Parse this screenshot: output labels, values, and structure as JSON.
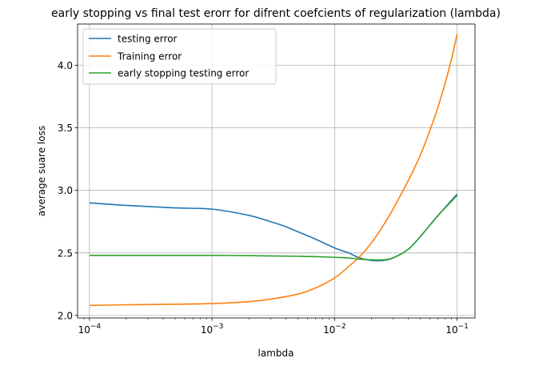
{
  "chart_data": {
    "type": "line",
    "title": "early stopping vs final test erorr for difrent coefcients of regularization (lambda)",
    "xlabel": "lambda",
    "ylabel": "average suare loss",
    "x_scale": "log",
    "xlim": [
      8e-05,
      0.14
    ],
    "ylim": [
      1.98,
      4.33
    ],
    "grid": true,
    "legend_position": "top-left",
    "x_ticks": [
      {
        "value": 0.0001,
        "base": "10",
        "exp": "−4"
      },
      {
        "value": 0.001,
        "base": "10",
        "exp": "−3"
      },
      {
        "value": 0.01,
        "base": "10",
        "exp": "−2"
      },
      {
        "value": 0.1,
        "base": "10",
        "exp": "−1"
      }
    ],
    "y_ticks": [
      {
        "value": 2.0,
        "label": "2.0"
      },
      {
        "value": 2.5,
        "label": "2.5"
      },
      {
        "value": 3.0,
        "label": "3.0"
      },
      {
        "value": 3.5,
        "label": "3.5"
      },
      {
        "value": 4.0,
        "label": "4.0"
      }
    ],
    "series": [
      {
        "name": "testing error",
        "color": "#1f77b4",
        "x": [
          0.0001,
          0.0002,
          0.0005,
          0.001,
          0.002,
          0.003,
          0.004,
          0.005,
          0.007,
          0.01,
          0.013,
          0.016,
          0.02,
          0.025,
          0.03,
          0.04,
          0.05,
          0.07,
          0.1
        ],
        "y": [
          2.9,
          2.88,
          2.86,
          2.85,
          2.8,
          2.75,
          2.71,
          2.67,
          2.61,
          2.54,
          2.5,
          2.46,
          2.44,
          2.44,
          2.46,
          2.53,
          2.63,
          2.8,
          2.97
        ]
      },
      {
        "name": "Training error",
        "color": "#ff7f0e",
        "x": [
          0.0001,
          0.0002,
          0.0005,
          0.001,
          0.002,
          0.003,
          0.005,
          0.007,
          0.01,
          0.013,
          0.016,
          0.02,
          0.025,
          0.03,
          0.04,
          0.05,
          0.06,
          0.07,
          0.08,
          0.09,
          0.1
        ],
        "y": [
          2.08,
          2.085,
          2.09,
          2.095,
          2.11,
          2.13,
          2.17,
          2.22,
          2.3,
          2.39,
          2.47,
          2.58,
          2.72,
          2.85,
          3.08,
          3.28,
          3.48,
          3.67,
          3.86,
          4.05,
          4.25
        ]
      },
      {
        "name": "early stopping testing error",
        "color": "#2ca02c",
        "x": [
          0.0001,
          0.0002,
          0.0005,
          0.001,
          0.002,
          0.003,
          0.005,
          0.007,
          0.01,
          0.013,
          0.016,
          0.02,
          0.025,
          0.03,
          0.04,
          0.05,
          0.07,
          0.1
        ],
        "y": [
          2.48,
          2.48,
          2.48,
          2.48,
          2.478,
          2.476,
          2.473,
          2.47,
          2.465,
          2.46,
          2.45,
          2.445,
          2.445,
          2.46,
          2.53,
          2.63,
          2.8,
          2.96
        ]
      }
    ]
  }
}
